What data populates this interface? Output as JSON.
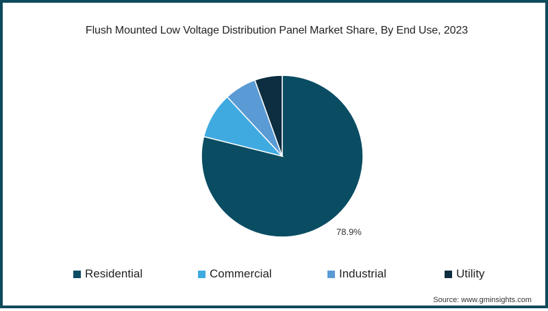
{
  "chart_data": {
    "type": "pie",
    "title": "Flush Mounted Low Voltage Distribution Panel Market Share, By End Use, 2023",
    "categories": [
      "Residential",
      "Commercial",
      "Industrial",
      "Utility"
    ],
    "values": [
      78.9,
      9.2,
      6.4,
      5.5
    ],
    "unit": "%",
    "colors": [
      "#0a4d63",
      "#3faae0",
      "#5b9bd5",
      "#0d2d40"
    ],
    "data_labels": [
      {
        "category": "Residential",
        "text": "78.9%"
      }
    ],
    "legend_position": "bottom",
    "start_angle_deg": 0,
    "direction": "clockwise"
  },
  "header": {
    "title": "Flush Mounted Low Voltage Distribution Panel Market Share, By End Use, 2023"
  },
  "labels": {
    "residential_pct": "78.9%"
  },
  "legend": {
    "items": [
      {
        "label": "Residential",
        "color": "#0a4d63"
      },
      {
        "label": "Commercial",
        "color": "#3faae0"
      },
      {
        "label": "Industrial",
        "color": "#5b9bd5"
      },
      {
        "label": "Utility",
        "color": "#0d2d40"
      }
    ]
  },
  "footer": {
    "source": "Source: www.gminsights.com"
  },
  "theme": {
    "border_color": "#0f4a5c"
  }
}
